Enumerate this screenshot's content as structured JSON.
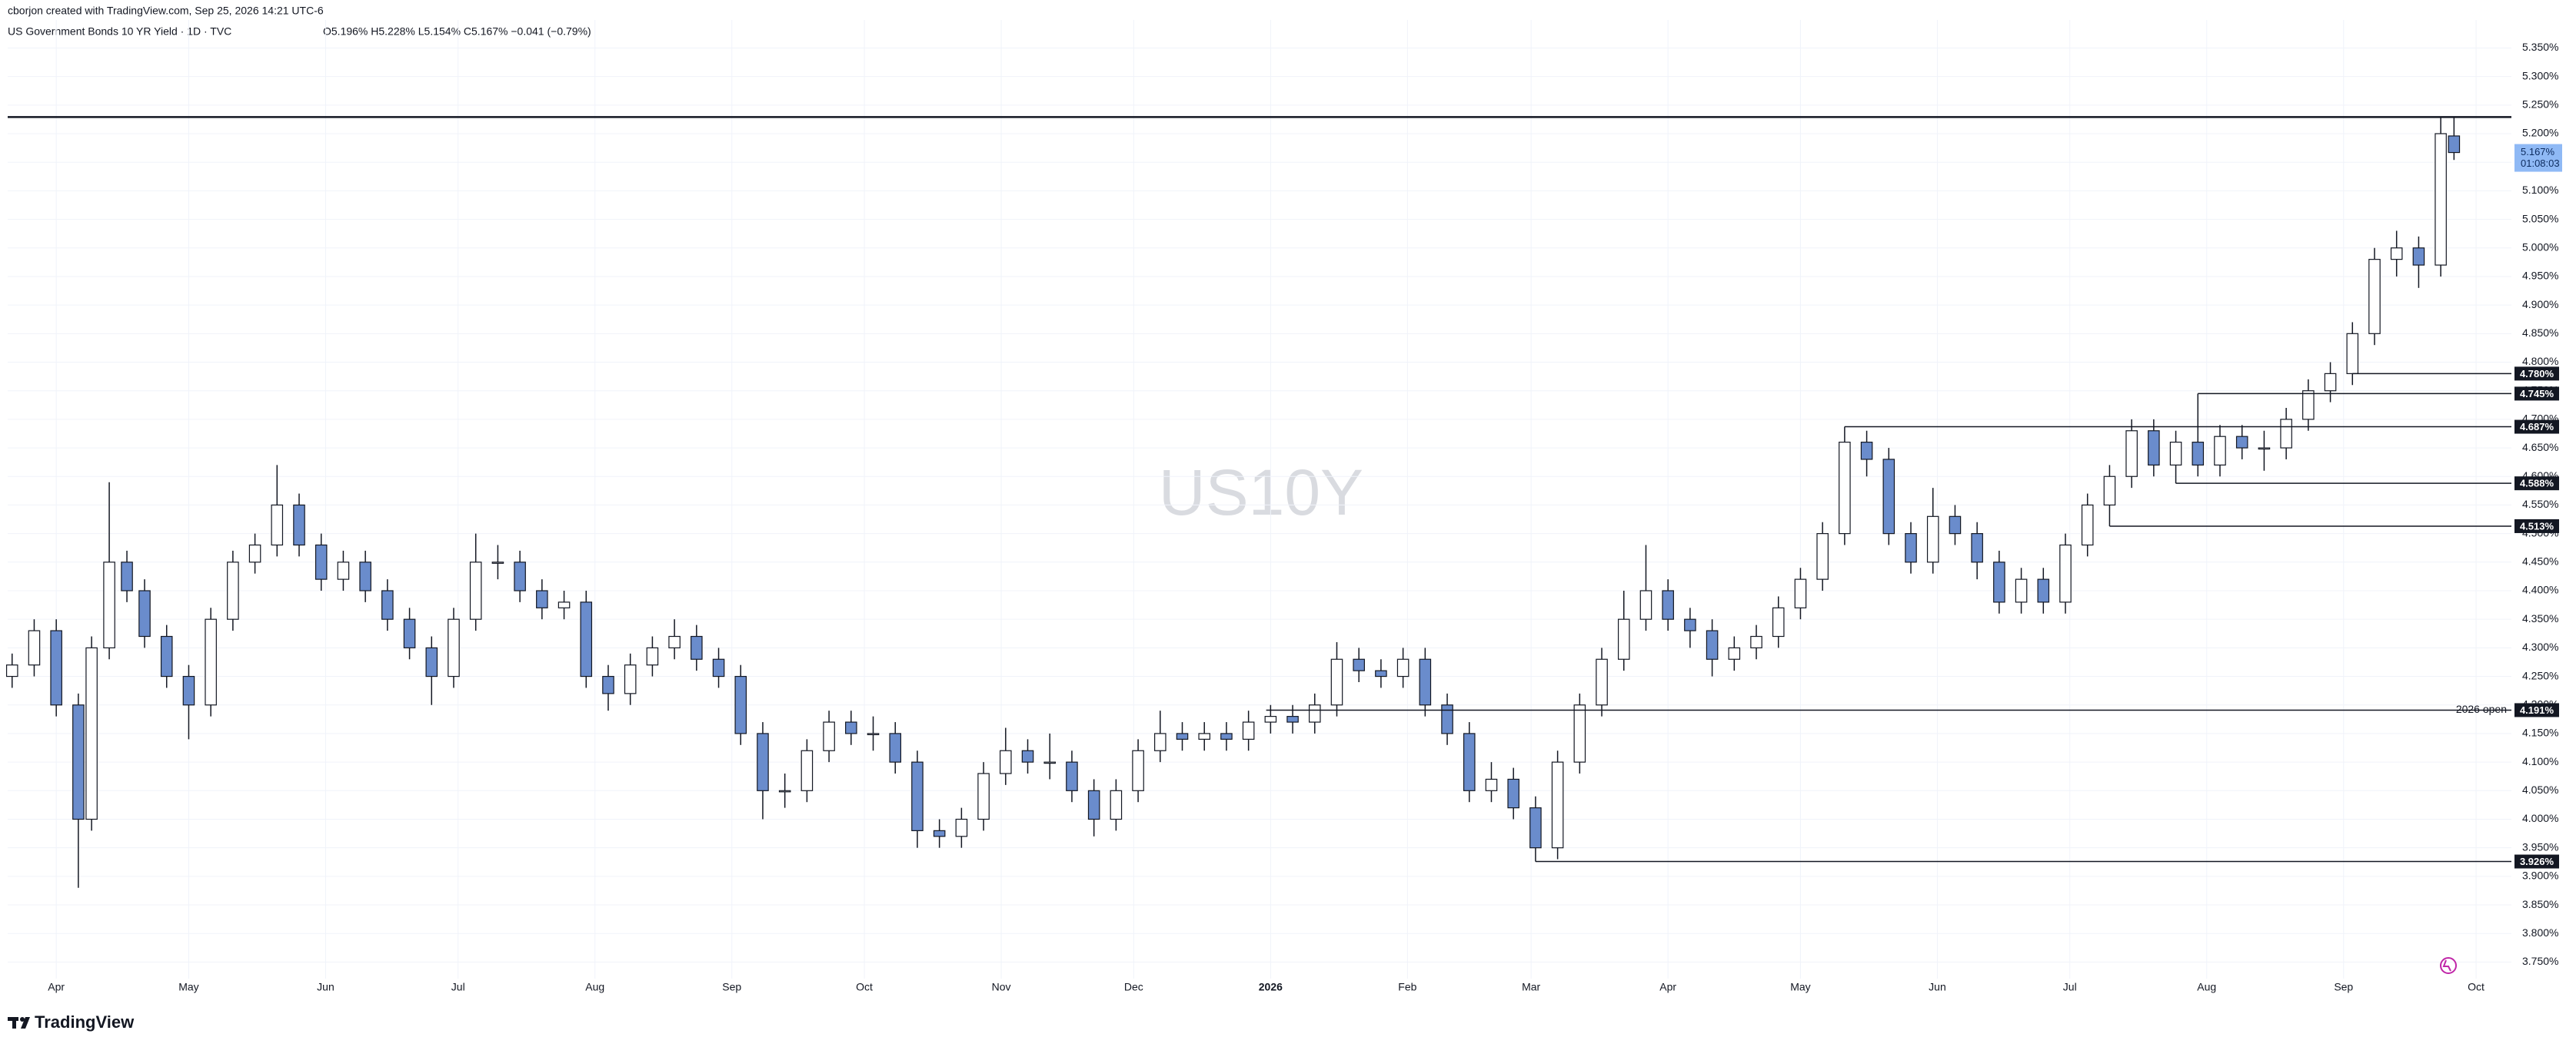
{
  "header": {
    "credit": "cborjon created with TradingView.com, Sep 25, 2026 14:21 UTC-6",
    "symbol": "US Government Bonds 10 YR Yield · 1D · TVC",
    "ohlc": "O5.196%  H5.228%  L5.154%  C5.167%  −0.041 (−0.79%)"
  },
  "footer": {
    "brand": "TradingView"
  },
  "chart_data": {
    "type": "candlestick",
    "watermark": "US10Y",
    "up_color": "#ffffff",
    "down_color": "#6a8ccc",
    "border_color": "#131722",
    "grid": true,
    "xlim": [
      -11,
      556
    ],
    "xticks": [
      {
        "value": 0,
        "label": "Apr"
      },
      {
        "value": 30,
        "label": "May"
      },
      {
        "value": 61,
        "label": "Jun"
      },
      {
        "value": 91,
        "label": "Jul"
      },
      {
        "value": 122,
        "label": "Aug"
      },
      {
        "value": 153,
        "label": "Sep"
      },
      {
        "value": 183,
        "label": "Oct"
      },
      {
        "value": 214,
        "label": "Nov"
      },
      {
        "value": 244,
        "label": "Dec"
      },
      {
        "value": 275,
        "label": "2026"
      },
      {
        "value": 306,
        "label": "Feb"
      },
      {
        "value": 334,
        "label": "Mar"
      },
      {
        "value": 365,
        "label": "Apr"
      },
      {
        "value": 395,
        "label": "May"
      },
      {
        "value": 426,
        "label": "Jun"
      },
      {
        "value": 456,
        "label": "Jul"
      },
      {
        "value": 487,
        "label": "Aug"
      },
      {
        "value": 518,
        "label": "Sep"
      },
      {
        "value": 548,
        "label": "Oct"
      }
    ],
    "ylim": [
      3.721,
      5.399
    ],
    "yticks": [
      {
        "value": 3.75,
        "label": "3.750%"
      },
      {
        "value": 3.8,
        "label": "3.800%"
      },
      {
        "value": 3.85,
        "label": "3.850%"
      },
      {
        "value": 3.9,
        "label": "3.900%"
      },
      {
        "value": 3.95,
        "label": "3.950%"
      },
      {
        "value": 4.0,
        "label": "4.000%"
      },
      {
        "value": 4.05,
        "label": "4.050%"
      },
      {
        "value": 4.1,
        "label": "4.100%"
      },
      {
        "value": 4.15,
        "label": "4.150%"
      },
      {
        "value": 4.2,
        "label": "4.200%"
      },
      {
        "value": 4.25,
        "label": "4.250%"
      },
      {
        "value": 4.3,
        "label": "4.300%"
      },
      {
        "value": 4.35,
        "label": "4.350%"
      },
      {
        "value": 4.4,
        "label": "4.400%"
      },
      {
        "value": 4.45,
        "label": "4.450%"
      },
      {
        "value": 4.5,
        "label": "4.500%"
      },
      {
        "value": 4.55,
        "label": "4.550%"
      },
      {
        "value": 4.6,
        "label": "4.600%"
      },
      {
        "value": 4.65,
        "label": "4.650%"
      },
      {
        "value": 4.7,
        "label": "4.700%"
      },
      {
        "value": 4.75,
        "label": "4.750%"
      },
      {
        "value": 4.8,
        "label": "4.800%"
      },
      {
        "value": 4.85,
        "label": "4.850%"
      },
      {
        "value": 4.9,
        "label": "4.900%"
      },
      {
        "value": 4.95,
        "label": "4.950%"
      },
      {
        "value": 5.0,
        "label": "5.000%"
      },
      {
        "value": 5.05,
        "label": "5.050%"
      },
      {
        "value": 5.1,
        "label": "5.100%"
      },
      {
        "value": 5.15,
        "label": "5.150%"
      },
      {
        "value": 5.2,
        "label": "5.200%"
      },
      {
        "value": 5.25,
        "label": "5.250%"
      },
      {
        "value": 5.3,
        "label": "5.300%"
      },
      {
        "value": 5.35,
        "label": "5.350%"
      }
    ],
    "x": [
      -10,
      -5,
      0,
      5,
      8,
      12,
      16,
      20,
      25,
      30,
      35,
      40,
      45,
      50,
      55,
      60,
      65,
      70,
      75,
      80,
      85,
      90,
      95,
      100,
      105,
      110,
      115,
      120,
      125,
      130,
      135,
      140,
      145,
      150,
      155,
      160,
      165,
      170,
      175,
      180,
      185,
      190,
      195,
      200,
      205,
      210,
      215,
      220,
      225,
      230,
      235,
      240,
      245,
      250,
      255,
      260,
      265,
      270,
      275,
      280,
      285,
      290,
      295,
      300,
      305,
      310,
      315,
      320,
      325,
      330,
      335,
      340,
      345,
      350,
      355,
      360,
      365,
      370,
      375,
      380,
      385,
      390,
      395,
      400,
      405,
      410,
      415,
      420,
      425,
      430,
      435,
      440,
      445,
      450,
      455,
      460,
      465,
      470,
      475,
      480,
      485,
      490,
      495,
      500,
      505,
      510,
      515,
      520,
      525,
      530,
      535,
      540,
      543
    ],
    "open": [
      4.25,
      4.27,
      4.33,
      4.2,
      4.0,
      4.3,
      4.45,
      4.4,
      4.32,
      4.25,
      4.2,
      4.35,
      4.45,
      4.48,
      4.55,
      4.48,
      4.42,
      4.45,
      4.4,
      4.35,
      4.3,
      4.25,
      4.35,
      4.45,
      4.45,
      4.4,
      4.37,
      4.38,
      4.25,
      4.22,
      4.27,
      4.3,
      4.32,
      4.28,
      4.25,
      4.15,
      4.05,
      4.05,
      4.12,
      4.17,
      4.15,
      4.15,
      4.1,
      3.98,
      3.97,
      4.0,
      4.08,
      4.12,
      4.1,
      4.1,
      4.05,
      4.0,
      4.05,
      4.12,
      4.15,
      4.14,
      4.15,
      4.14,
      4.17,
      4.18,
      4.17,
      4.2,
      4.28,
      4.26,
      4.25,
      4.28,
      4.2,
      4.15,
      4.05,
      4.07,
      4.02,
      3.95,
      4.1,
      4.2,
      4.28,
      4.35,
      4.4,
      4.35,
      4.33,
      4.28,
      4.3,
      4.32,
      4.37,
      4.42,
      4.5,
      4.66,
      4.63,
      4.5,
      4.45,
      4.53,
      4.5,
      4.45,
      4.38,
      4.42,
      4.38,
      4.48,
      4.55,
      4.6,
      4.68,
      4.62,
      4.66,
      4.62,
      4.67,
      4.65,
      4.65,
      4.7,
      4.75,
      4.78,
      4.85,
      4.98,
      5.0,
      4.97,
      5.196
    ],
    "high": [
      4.29,
      4.35,
      4.35,
      4.22,
      4.32,
      4.59,
      4.47,
      4.42,
      4.34,
      4.27,
      4.37,
      4.47,
      4.5,
      4.62,
      4.57,
      4.5,
      4.47,
      4.47,
      4.42,
      4.37,
      4.32,
      4.37,
      4.5,
      4.48,
      4.47,
      4.42,
      4.4,
      4.4,
      4.27,
      4.29,
      4.32,
      4.35,
      4.34,
      4.3,
      4.27,
      4.17,
      4.08,
      4.14,
      4.19,
      4.19,
      4.18,
      4.17,
      4.12,
      4.0,
      4.02,
      4.1,
      4.16,
      4.14,
      4.15,
      4.12,
      4.07,
      4.07,
      4.14,
      4.19,
      4.17,
      4.17,
      4.17,
      4.19,
      4.2,
      4.2,
      4.22,
      4.31,
      4.3,
      4.28,
      4.3,
      4.3,
      4.22,
      4.17,
      4.1,
      4.09,
      4.04,
      4.12,
      4.22,
      4.3,
      4.4,
      4.48,
      4.42,
      4.37,
      4.35,
      4.32,
      4.34,
      4.39,
      4.44,
      4.52,
      4.687,
      4.68,
      4.65,
      4.52,
      4.58,
      4.55,
      4.52,
      4.47,
      4.44,
      4.44,
      4.5,
      4.57,
      4.62,
      4.7,
      4.7,
      4.68,
      4.745,
      4.69,
      4.69,
      4.68,
      4.72,
      4.77,
      4.8,
      4.87,
      5.0,
      5.03,
      5.02,
      5.23,
      5.228
    ],
    "low": [
      4.23,
      4.25,
      4.18,
      3.88,
      3.98,
      4.28,
      4.38,
      4.3,
      4.23,
      4.14,
      4.18,
      4.33,
      4.43,
      4.46,
      4.46,
      4.4,
      4.4,
      4.38,
      4.33,
      4.28,
      4.2,
      4.23,
      4.33,
      4.42,
      4.38,
      4.35,
      4.35,
      4.23,
      4.19,
      4.2,
      4.25,
      4.28,
      4.26,
      4.23,
      4.13,
      4.0,
      4.02,
      4.03,
      4.1,
      4.13,
      4.12,
      4.08,
      3.95,
      3.95,
      3.95,
      3.98,
      4.06,
      4.08,
      4.07,
      4.03,
      3.97,
      3.98,
      4.03,
      4.1,
      4.12,
      4.12,
      4.12,
      4.12,
      4.15,
      4.15,
      4.15,
      4.18,
      4.24,
      4.23,
      4.23,
      4.18,
      4.13,
      4.03,
      4.03,
      4.0,
      3.926,
      3.93,
      4.08,
      4.18,
      4.26,
      4.33,
      4.33,
      4.3,
      4.25,
      4.26,
      4.28,
      4.3,
      4.35,
      4.4,
      4.48,
      4.6,
      4.48,
      4.43,
      4.43,
      4.48,
      4.42,
      4.36,
      4.36,
      4.36,
      4.36,
      4.46,
      4.513,
      4.58,
      4.6,
      4.588,
      4.6,
      4.6,
      4.63,
      4.61,
      4.63,
      4.68,
      4.73,
      4.76,
      4.83,
      4.95,
      4.93,
      4.95,
      5.154
    ],
    "close": [
      4.27,
      4.33,
      4.2,
      4.0,
      4.3,
      4.45,
      4.4,
      4.32,
      4.25,
      4.2,
      4.35,
      4.45,
      4.48,
      4.55,
      4.48,
      4.42,
      4.45,
      4.4,
      4.35,
      4.3,
      4.25,
      4.35,
      4.45,
      4.45,
      4.4,
      4.37,
      4.38,
      4.25,
      4.22,
      4.27,
      4.3,
      4.32,
      4.28,
      4.25,
      4.15,
      4.05,
      4.05,
      4.12,
      4.17,
      4.15,
      4.15,
      4.1,
      3.98,
      3.97,
      4.0,
      4.08,
      4.12,
      4.1,
      4.1,
      4.05,
      4.0,
      4.05,
      4.12,
      4.15,
      4.14,
      4.15,
      4.14,
      4.17,
      4.18,
      4.17,
      4.2,
      4.28,
      4.26,
      4.25,
      4.28,
      4.2,
      4.15,
      4.05,
      4.07,
      4.02,
      3.95,
      4.1,
      4.2,
      4.28,
      4.35,
      4.4,
      4.35,
      4.33,
      4.28,
      4.3,
      4.32,
      4.37,
      4.42,
      4.5,
      4.66,
      4.63,
      4.5,
      4.45,
      4.53,
      4.5,
      4.45,
      4.38,
      4.42,
      4.38,
      4.48,
      4.55,
      4.6,
      4.68,
      4.62,
      4.66,
      4.62,
      4.67,
      4.65,
      4.65,
      4.7,
      4.75,
      4.78,
      4.85,
      4.98,
      5.0,
      4.97,
      5.2,
      5.167
    ],
    "levels": [
      {
        "value": 5.229
      },
      {
        "value": 4.78,
        "label": "4.780%",
        "start": 520
      },
      {
        "value": 4.745,
        "label": "4.745%",
        "start": 485
      },
      {
        "value": 4.687,
        "label": "4.687%",
        "start": 405
      },
      {
        "value": 4.588,
        "label": "4.588%",
        "start": 480
      },
      {
        "value": 4.513,
        "label": "4.513%",
        "start": 465
      },
      {
        "value": 4.191,
        "label": "4.191%",
        "start": 274,
        "note": "2026 open"
      },
      {
        "value": 3.926,
        "label": "3.926%",
        "start": 335
      }
    ],
    "last_price": {
      "value": 5.167,
      "label": "5.167%",
      "countdown": "01:08:03",
      "color": "#8fb9f5"
    }
  }
}
